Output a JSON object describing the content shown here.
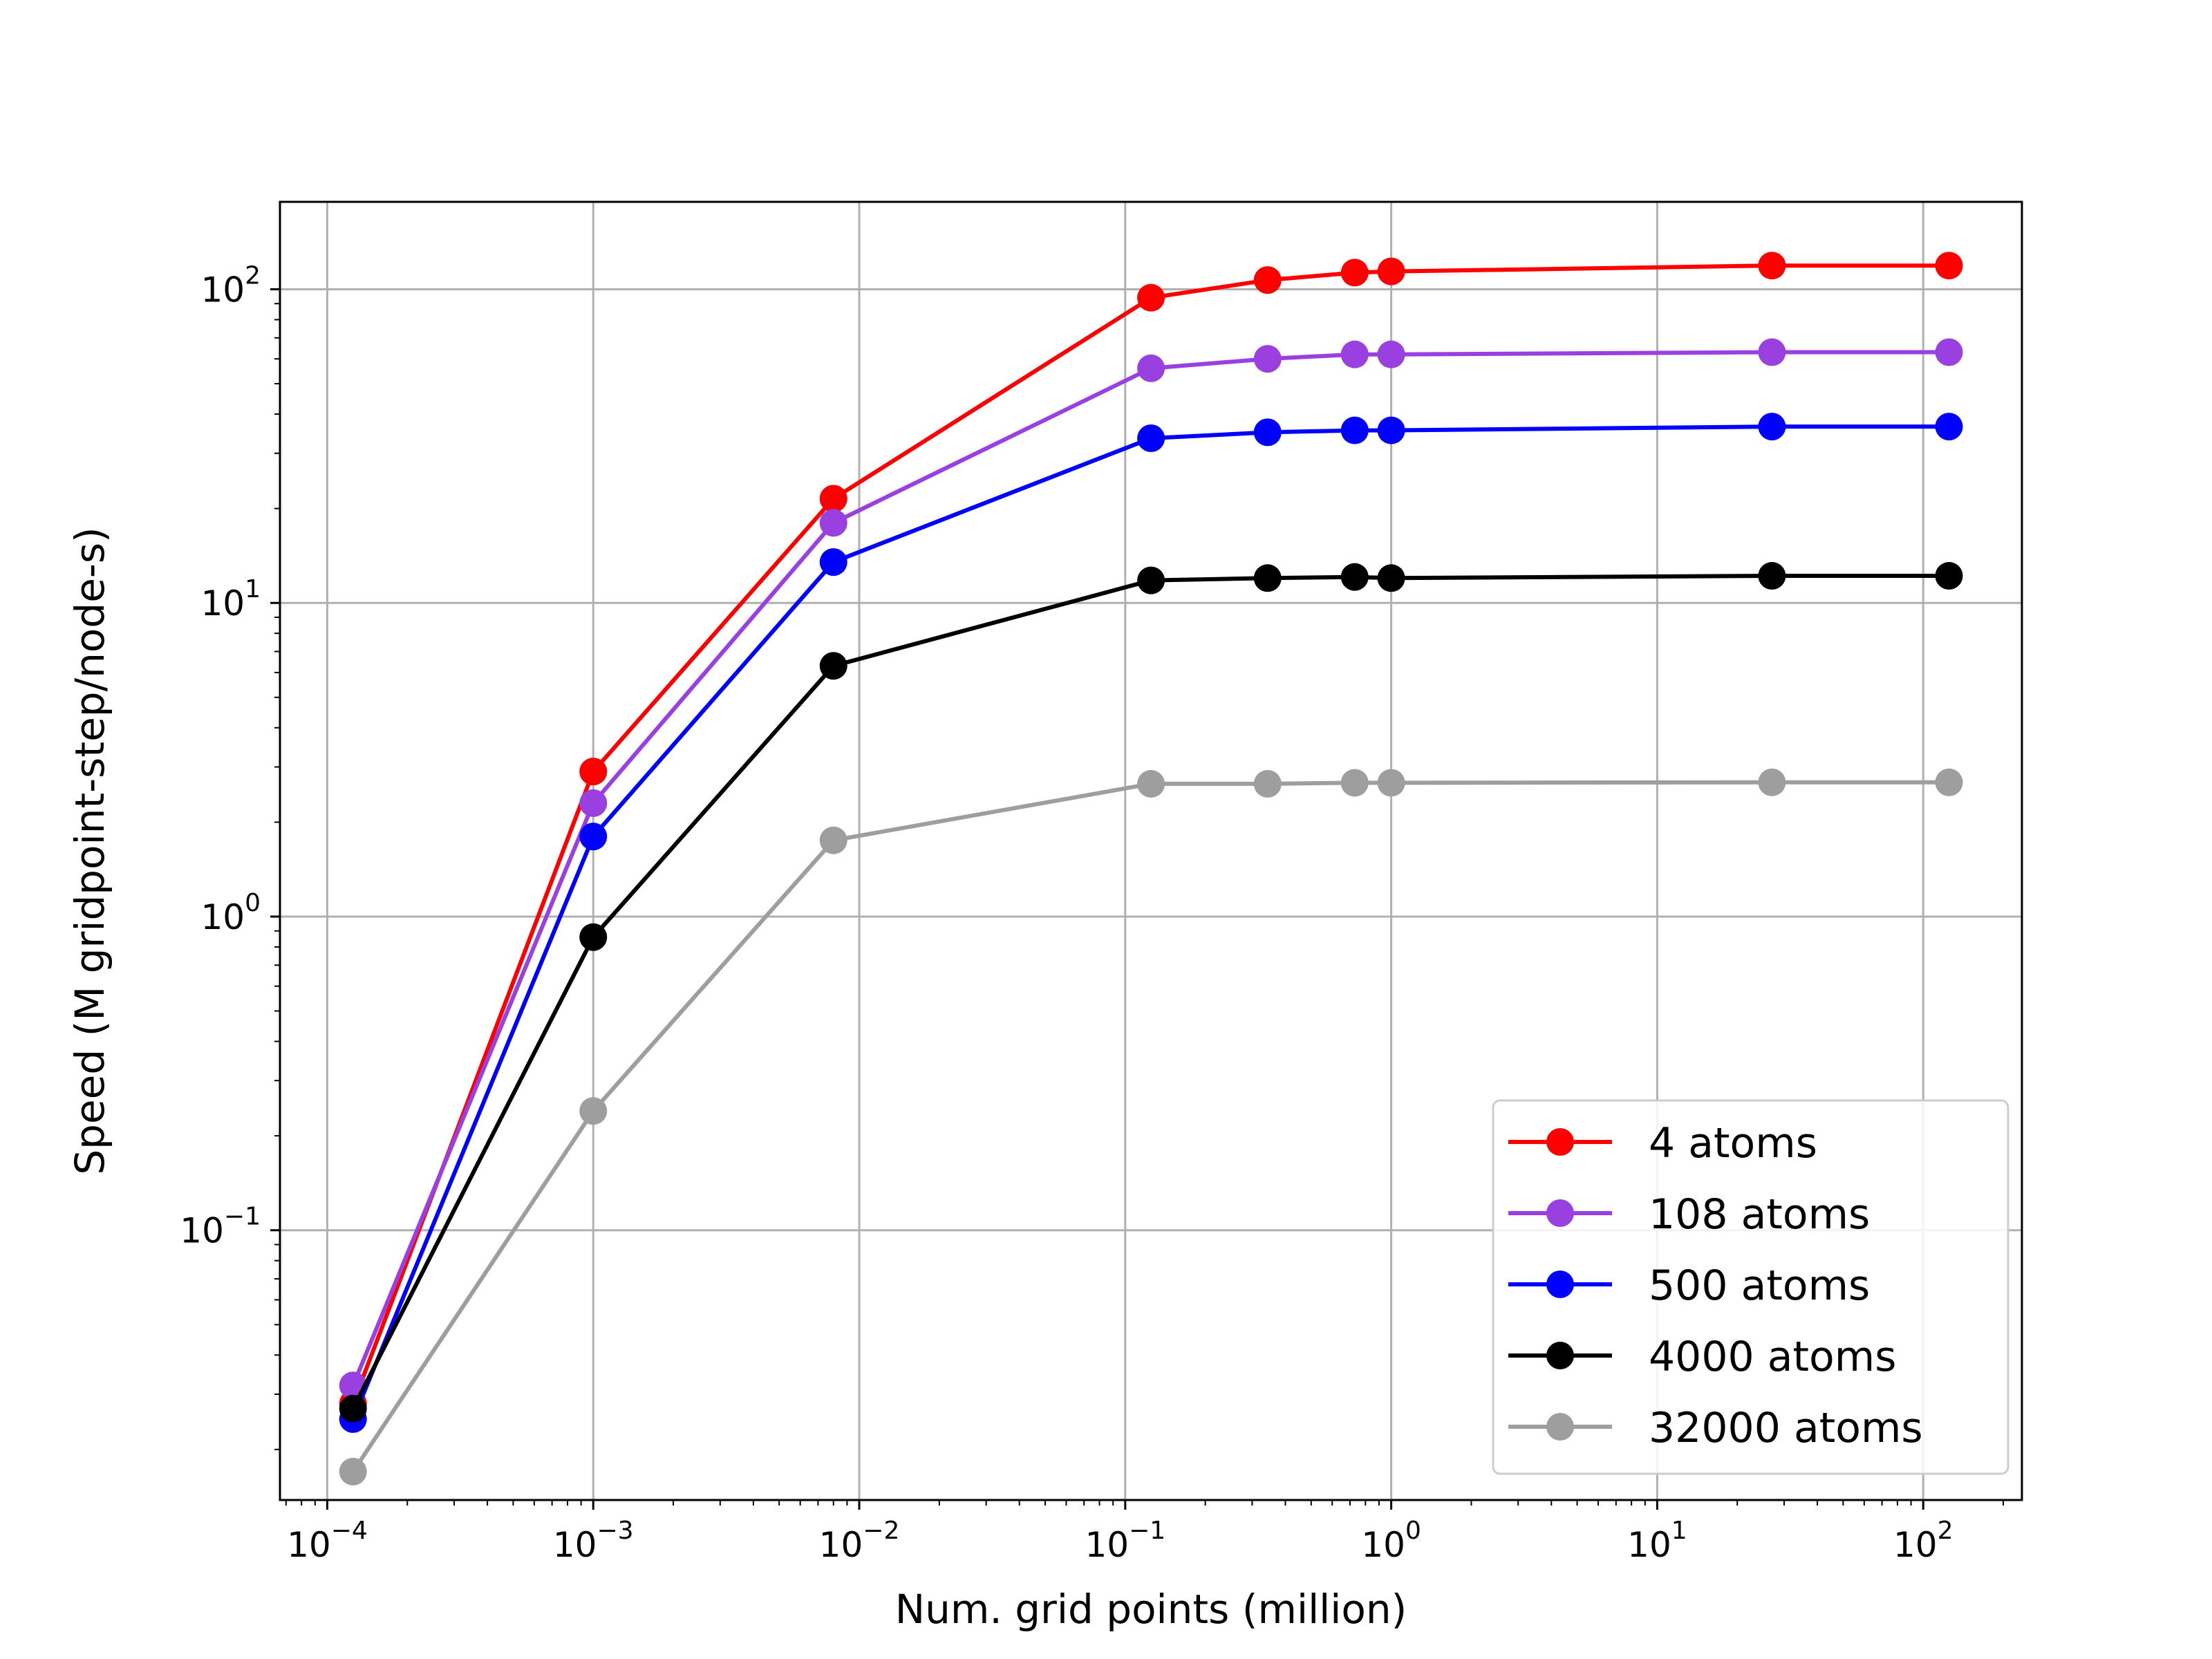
{
  "chart_data": {
    "type": "line",
    "title": "",
    "xlabel": "Num. grid points (million)",
    "ylabel": "Speed (M gridpoint-step/node-s)",
    "xscale": "log",
    "yscale": "log",
    "xlim": [
      6.64e-05,
      235
    ],
    "ylim": [
      0.0138,
      190
    ],
    "grid": true,
    "legend_position": "lower right",
    "x_ticks": [
      {
        "base": "10",
        "exp": "−4",
        "value": 0.0001
      },
      {
        "base": "10",
        "exp": "−3",
        "value": 0.001
      },
      {
        "base": "10",
        "exp": "−2",
        "value": 0.01
      },
      {
        "base": "10",
        "exp": "−1",
        "value": 0.1
      },
      {
        "base": "10",
        "exp": "0",
        "value": 1
      },
      {
        "base": "10",
        "exp": "1",
        "value": 10
      },
      {
        "base": "10",
        "exp": "2",
        "value": 100
      }
    ],
    "y_ticks": [
      {
        "base": "10",
        "exp": "−1",
        "value": 0.1
      },
      {
        "base": "10",
        "exp": "0",
        "value": 1
      },
      {
        "base": "10",
        "exp": "1",
        "value": 10
      },
      {
        "base": "10",
        "exp": "2",
        "value": 100
      }
    ],
    "x": [
      0.000125,
      0.001,
      0.008,
      0.125,
      0.343,
      0.729,
      1.0,
      27.0,
      125.0
    ],
    "series": [
      {
        "name": "4 atoms",
        "color": "#ff0000",
        "values": [
          0.028,
          2.9,
          21.5,
          94,
          107,
          113,
          114,
          119,
          119
        ]
      },
      {
        "name": "108 atoms",
        "color": "#9b40e0",
        "values": [
          0.032,
          2.3,
          18.0,
          56,
          60,
          62,
          62,
          63,
          63
        ]
      },
      {
        "name": "500 atoms",
        "color": "#0000ff",
        "values": [
          0.025,
          1.8,
          13.5,
          33.5,
          35,
          35.5,
          35.5,
          36.5,
          36.5
        ]
      },
      {
        "name": "4000 atoms",
        "color": "#000000",
        "values": [
          0.027,
          0.86,
          6.3,
          11.8,
          12.0,
          12.1,
          12.0,
          12.2,
          12.2
        ]
      },
      {
        "name": "32000 atoms",
        "color": "#9e9e9e",
        "values": [
          0.017,
          0.24,
          1.75,
          2.65,
          2.65,
          2.67,
          2.67,
          2.68,
          2.68
        ]
      }
    ]
  }
}
